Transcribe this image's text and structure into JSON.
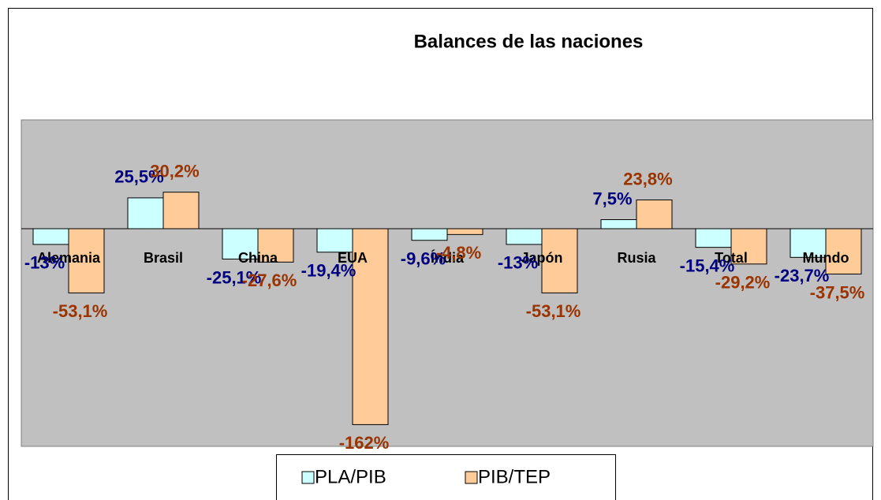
{
  "chart_data": {
    "type": "bar",
    "title": "Balances de las naciones",
    "categories": [
      "Alemania",
      "Brasil",
      "China",
      "EUA",
      "Índia",
      "Japón",
      "Rusia",
      "Total",
      "Mundo"
    ],
    "series": [
      {
        "name": "PLA/PIB",
        "color": "#ccffff",
        "label_color": "#000080",
        "values": [
          -13,
          25.5,
          -25.1,
          -19.4,
          -9.6,
          -13,
          7.5,
          -15.4,
          -23.7
        ],
        "value_labels": [
          "-13%",
          "25,5%",
          "-25,1%",
          "-19,4%",
          "-9,6%",
          "-13%",
          "7,5%",
          "-15,4%",
          "-23,7%"
        ]
      },
      {
        "name": "PIB/TEP",
        "color": "#ffcc99",
        "label_color": "#993300",
        "values": [
          -53.1,
          30.2,
          -27.6,
          -162,
          -4.8,
          -53.1,
          23.8,
          -29.2,
          -37.5
        ],
        "value_labels": [
          "-53,1%",
          "30,2%",
          "-27,6%",
          "-162%",
          "-4,8%",
          "-53,1%",
          "23,8%",
          "-29,2%",
          "-37,5%"
        ]
      }
    ],
    "ylim": [
      -180,
      90
    ],
    "legend": "bottom"
  }
}
